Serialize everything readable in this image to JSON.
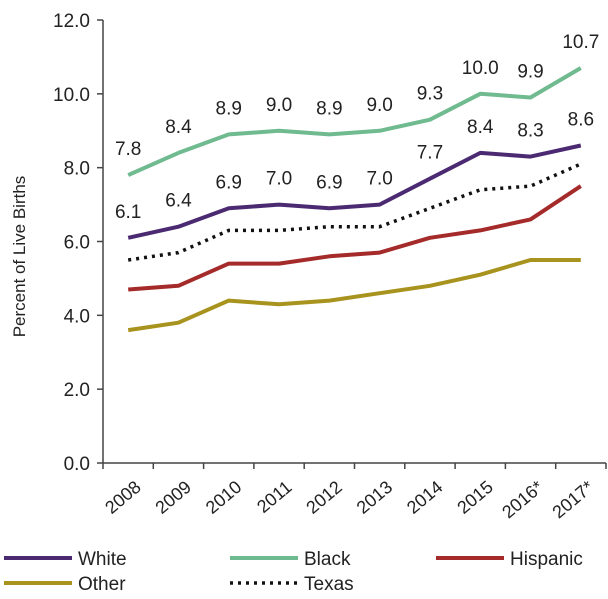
{
  "chart_data": {
    "type": "line",
    "ylabel": "Percent of Live Births",
    "ylim": [
      0,
      12
    ],
    "yticks": [
      "0.0",
      "2.0",
      "4.0",
      "6.0",
      "8.0",
      "10.0",
      "12.0"
    ],
    "categories": [
      "2008",
      "2009",
      "2010",
      "2011",
      "2012",
      "2013",
      "2014",
      "2015",
      "2016*",
      "2017*"
    ],
    "grid": false,
    "legend_position": "bottom",
    "series": [
      {
        "name": "White",
        "color": "#4b2a72",
        "style": "solid",
        "values": [
          6.1,
          6.4,
          6.9,
          7.0,
          6.9,
          7.0,
          7.7,
          8.4,
          8.3,
          8.6
        ],
        "labels": [
          "6.1",
          "6.4",
          "6.9",
          "7.0",
          "6.9",
          "7.0",
          "7.7",
          "8.4",
          "8.3",
          "8.6"
        ]
      },
      {
        "name": "Black",
        "color": "#6fba8e",
        "style": "solid",
        "values": [
          7.8,
          8.4,
          8.9,
          9.0,
          8.9,
          9.0,
          9.3,
          10.0,
          9.9,
          10.7
        ],
        "labels": [
          "7.8",
          "8.4",
          "8.9",
          "9.0",
          "8.9",
          "9.0",
          "9.3",
          "10.0",
          "9.9",
          "10.7"
        ]
      },
      {
        "name": "Hispanic",
        "color": "#a52a2a",
        "style": "solid",
        "values": [
          4.7,
          4.8,
          5.4,
          5.4,
          5.6,
          5.7,
          6.1,
          6.3,
          6.6,
          7.5
        ]
      },
      {
        "name": "Other",
        "color": "#a8931e",
        "style": "solid",
        "values": [
          3.6,
          3.8,
          4.4,
          4.3,
          4.4,
          4.6,
          4.8,
          5.1,
          5.5,
          5.5
        ]
      },
      {
        "name": "Texas",
        "color": "#111111",
        "style": "dotted",
        "values": [
          5.5,
          5.7,
          6.3,
          6.3,
          6.4,
          6.4,
          6.9,
          7.4,
          7.5,
          8.1
        ]
      }
    ],
    "legend_order": [
      "White",
      "Black",
      "Hispanic",
      "Other",
      "Texas"
    ]
  }
}
